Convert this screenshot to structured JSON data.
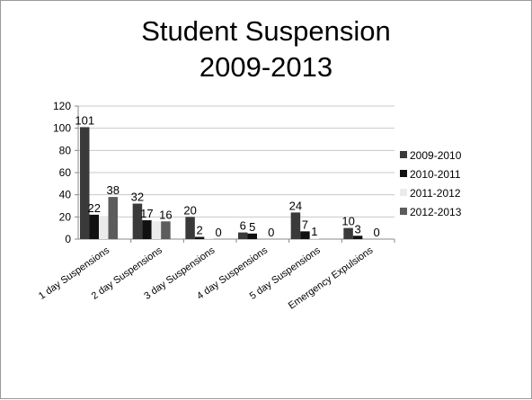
{
  "title": {
    "line1": "Student Suspension",
    "line2": "2009-2013"
  },
  "chart_data": {
    "type": "bar",
    "title": "Student Suspension 2009-2013",
    "xlabel": "",
    "ylabel": "",
    "ylim": [
      0,
      120
    ],
    "yticks": [
      0,
      20,
      40,
      60,
      80,
      100,
      120
    ],
    "grid": true,
    "legend_position": "right",
    "categories": [
      "1 day Suspensions",
      "2 day Suspensions",
      "3 day Suspensions",
      "4 day Suspensions",
      "5 day Suspensions",
      "Emergency Expulsions"
    ],
    "series": [
      {
        "name": "2009-2010",
        "color": "#3a3a3a",
        "values": [
          101,
          32,
          20,
          6,
          24,
          10
        ],
        "labels": [
          "101",
          "32",
          "20",
          "6",
          "24",
          "10"
        ]
      },
      {
        "name": "2010-2011",
        "color": "#111111",
        "values": [
          22,
          17,
          2,
          5,
          7,
          3
        ],
        "labels": [
          "22",
          "17",
          "2",
          "5",
          "7",
          "3"
        ]
      },
      {
        "name": "2011-2012",
        "color": "#ebebeb",
        "values": [
          21,
          16,
          1,
          0,
          1,
          0
        ],
        "labels": [
          "",
          "",
          "",
          "",
          "1",
          ""
        ]
      },
      {
        "name": "2012-2013",
        "color": "#5c5c5c",
        "values": [
          38,
          16,
          0,
          0,
          0,
          0
        ],
        "labels": [
          "38",
          "16",
          "0",
          "0",
          "",
          "0"
        ]
      }
    ]
  }
}
